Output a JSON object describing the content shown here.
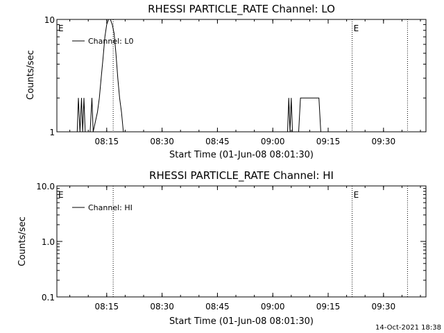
{
  "footer": {
    "timestamp": "14-Oct-2021 18:38"
  },
  "chart_data": [
    {
      "type": "line",
      "title": "RHESSI PARTICLE_RATE Channel: LO",
      "xlabel": "Start Time (01-Jun-08 08:01:30)",
      "ylabel": "Counts/sec",
      "yscale": "log",
      "xlim": [
        "08:01:30",
        "09:41:30"
      ],
      "ylim": [
        1,
        10
      ],
      "xtick_labels": [
        "08:15",
        "08:30",
        "08:45",
        "09:00",
        "09:15",
        "09:30"
      ],
      "xtick_values": [
        "08:15",
        "08:30",
        "08:45",
        "09:00",
        "09:15",
        "09:30"
      ],
      "ytick_labels": [
        "1",
        "10"
      ],
      "ytick_values": [
        1,
        10
      ],
      "legend": {
        "position": "top-left",
        "entries": [
          "Channel: L0"
        ]
      },
      "marker_label": "E",
      "vertical_lines": [
        "08:01:30",
        "08:16:45",
        "09:21:30",
        "09:36:30"
      ],
      "series": [
        {
          "name": "Channel: L0",
          "x": [
            "08:07:00",
            "08:07:20",
            "08:07:45",
            "08:08:10",
            "08:08:30",
            "08:08:50",
            "08:09:10",
            "08:09:30",
            "08:10:30",
            "08:11:00",
            "08:11:20",
            "08:12:30",
            "08:13:00",
            "08:13:30",
            "08:14:00",
            "08:14:30",
            "08:15:00",
            "08:15:30",
            "08:16:00",
            "08:16:30",
            "08:17:00",
            "08:17:30",
            "08:18:00",
            "08:18:30",
            "08:19:00",
            "08:19:30",
            "08:20:00",
            "08:21:00",
            "09:04:00",
            "09:04:20",
            "09:04:40",
            "09:05:00",
            "09:05:20",
            "09:05:40",
            "09:07:00",
            "09:07:30",
            "09:08:00",
            "09:10:00",
            "09:12:30",
            "09:13:00",
            "09:13:30"
          ],
          "y": [
            1,
            2,
            1,
            2,
            1,
            2,
            1,
            1,
            1,
            2,
            1,
            1.5,
            2,
            3,
            4.5,
            7,
            9,
            10,
            10,
            9,
            7.5,
            5,
            3,
            2,
            1.5,
            1,
            1,
            1,
            1,
            2,
            1,
            2,
            1,
            1,
            1,
            2,
            2,
            2,
            2,
            1,
            1
          ]
        }
      ]
    },
    {
      "type": "line",
      "title": "RHESSI PARTICLE_RATE Channel: HI",
      "xlabel": "Start Time (01-Jun-08 08:01:30)",
      "ylabel": "Counts/sec",
      "yscale": "log",
      "xlim": [
        "08:01:30",
        "09:41:30"
      ],
      "ylim": [
        0.1,
        10
      ],
      "xtick_labels": [
        "08:15",
        "08:30",
        "08:45",
        "09:00",
        "09:15",
        "09:30"
      ],
      "xtick_values": [
        "08:15",
        "08:30",
        "08:45",
        "09:00",
        "09:15",
        "09:30"
      ],
      "ytick_labels": [
        "0.1",
        "1.0",
        "10.0"
      ],
      "ytick_values": [
        0.1,
        1.0,
        10.0
      ],
      "legend": {
        "position": "top-left",
        "entries": [
          "Channel: HI"
        ]
      },
      "marker_label": "E",
      "vertical_lines": [
        "08:01:30",
        "08:16:45",
        "09:21:30",
        "09:36:30"
      ],
      "series": [
        {
          "name": "Channel: HI",
          "x": [],
          "y": []
        }
      ]
    }
  ]
}
